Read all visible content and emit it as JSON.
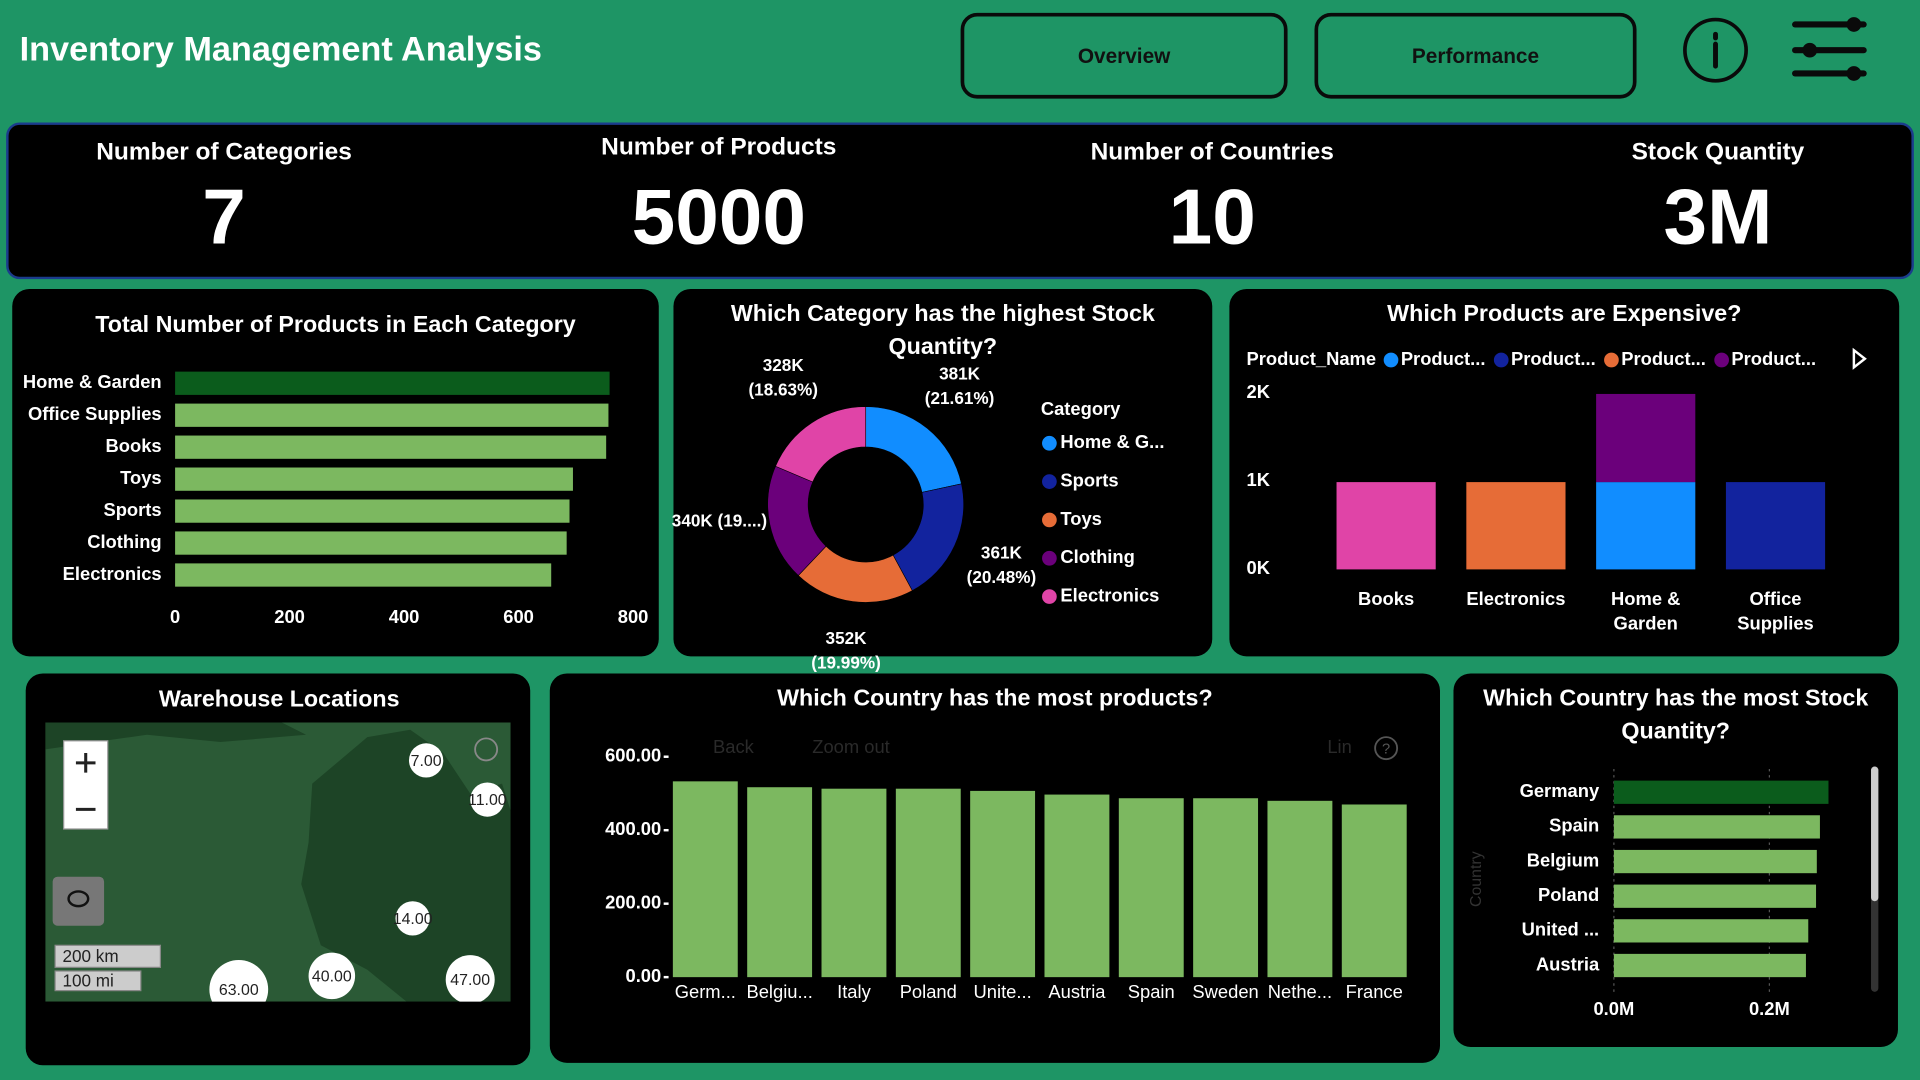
{
  "header": {
    "title": "Inventory Management Analysis",
    "buttons": [
      "Overview",
      "Performance"
    ]
  },
  "kpis": [
    {
      "label": "Number of Categories",
      "value": 7
    },
    {
      "label": "Number of Products",
      "value": 5000
    },
    {
      "label": "Number of Countries",
      "value": 10
    },
    {
      "label": "Stock Quantity",
      "value": "3M"
    }
  ],
  "chart_data": [
    {
      "type": "bar",
      "orientation": "horizontal",
      "title": "Total Number of Products in Each Category",
      "categories": [
        "Home & Garden",
        "Office Supplies",
        "Books",
        "Toys",
        "Sports",
        "Clothing",
        "Electronics"
      ],
      "values": [
        759,
        757,
        753,
        695,
        689,
        684,
        657
      ],
      "colors": [
        "#0b5c1c",
        "#7cb860",
        "#7cb860",
        "#7cb860",
        "#7cb860",
        "#7cb860",
        "#7cb860"
      ],
      "xlim": [
        0,
        800
      ],
      "xticks": [
        0,
        200,
        400,
        600,
        800
      ],
      "grid": false
    },
    {
      "type": "donut",
      "title": "Which Category has the highest Stock Quantity?",
      "legend_title": "Category",
      "categories": [
        "Home & G...",
        "Sports",
        "Toys",
        "Clothing",
        "Electronics"
      ],
      "values": [
        381000,
        361000,
        352000,
        340000,
        328000
      ],
      "value_labels": [
        "381K (21.61%)",
        "361K (20.48%)",
        "352K (19.99%)",
        "340K (19....)",
        "328K (18.63%)"
      ],
      "colors": [
        "#118dff",
        "#12239e",
        "#e66c37",
        "#6b007b",
        "#e044a7"
      ]
    },
    {
      "type": "stacked_bar",
      "title": "Which Products are Expensive?",
      "legend_title": "Product_Name",
      "categories": [
        "Books",
        "Electronics",
        "Home & Garden",
        "Office Supplies"
      ],
      "series": [
        {
          "name": "Product...",
          "color": "#118dff",
          "values": [
            null,
            null,
            990,
            null
          ]
        },
        {
          "name": "Product...",
          "color": "#12239e",
          "values": [
            null,
            null,
            null,
            990
          ]
        },
        {
          "name": "Product...",
          "color": "#e66c37",
          "values": [
            null,
            990,
            null,
            null
          ]
        },
        {
          "name": "Product...",
          "color": "#6b007b",
          "values": [
            null,
            null,
            1000,
            null
          ]
        },
        {
          "color": "#e044a7",
          "values": [
            990,
            null,
            null,
            null
          ]
        }
      ],
      "ylim": [
        0,
        2000
      ],
      "yticks": [
        {
          "value": 0,
          "label": "0K"
        },
        {
          "value": 1000,
          "label": "1K"
        },
        {
          "value": 2000,
          "label": "2K"
        }
      ]
    },
    {
      "type": "bar",
      "orientation": "vertical",
      "title": "Which Country has the most products?",
      "toolbar": [
        "Back",
        "Zoom out",
        "Lin"
      ],
      "categories": [
        "Germ...",
        "Belgiu...",
        "Italy",
        "Poland",
        "Unite...",
        "Austria",
        "Spain",
        "Sweden",
        "Nethe...",
        "France"
      ],
      "values": [
        533,
        517,
        513,
        513,
        507,
        497,
        487,
        487,
        480,
        470
      ],
      "color": "#7cb860",
      "ylim": [
        0,
        600
      ],
      "yticks": [
        {
          "value": 0,
          "label": "0.00"
        },
        {
          "value": 200,
          "label": "200.00"
        },
        {
          "value": 400,
          "label": "400.00"
        },
        {
          "value": 600,
          "label": "600.00"
        }
      ]
    },
    {
      "type": "bar",
      "orientation": "horizontal",
      "title": "Which Country has the most Stock Quantity?",
      "ylabel": "Country",
      "categories": [
        "Germany",
        "Spain",
        "Belgium",
        "Poland",
        "United ...",
        "Austria"
      ],
      "values": [
        276000,
        265000,
        261000,
        260000,
        250000,
        247000
      ],
      "colors": [
        "#0b5c1c",
        "#7cb860",
        "#7cb860",
        "#7cb860",
        "#7cb860",
        "#7cb860"
      ],
      "xlim": [
        0,
        280000
      ],
      "xticks": [
        {
          "value": 0,
          "label": "0.0M"
        },
        {
          "value": 200000,
          "label": "0.2M"
        }
      ],
      "grid": true
    }
  ],
  "map": {
    "title": "Warehouse Locations",
    "bubbles": [
      "7.00",
      "11.00",
      "14.00",
      "40.00",
      "47.00",
      "63.00"
    ],
    "scale": [
      "200 km",
      "100 mi"
    ]
  }
}
